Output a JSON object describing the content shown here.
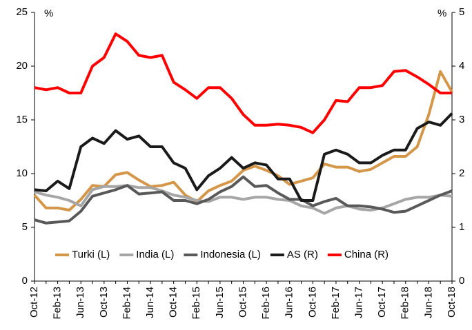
{
  "chart_data": {
    "type": "line",
    "y_unit_label": "%",
    "y2_unit_label": "%",
    "categories": [
      "Oct-12",
      null,
      "Feb-13",
      null,
      "Jun-13",
      null,
      "Oct-13",
      null,
      "Feb-14",
      null,
      "Jun-14",
      null,
      "Oct-14",
      null,
      "Feb-15",
      null,
      "Jun-15",
      null,
      "Oct-15",
      null,
      "Feb-16",
      null,
      "Jun-16",
      null,
      "Oct-16",
      null,
      "Feb-17",
      null,
      "Jun-17",
      null,
      "Oct-17",
      null,
      "Feb-18",
      null,
      "Jun-18",
      null,
      "Oct-18"
    ],
    "ylim": [
      0,
      25
    ],
    "yticks": [
      0,
      5,
      10,
      15,
      20,
      25
    ],
    "y2lim": [
      0,
      5
    ],
    "y2ticks": [
      0,
      1,
      2,
      3,
      4,
      5
    ],
    "legend": "bottom",
    "series": [
      {
        "name": "Turki (L)",
        "color": "#d4974a",
        "values": [
          8.0,
          6.8,
          6.8,
          6.6,
          7.6,
          8.9,
          8.8,
          9.9,
          10.1,
          9.4,
          8.8,
          8.9,
          9.2,
          8.0,
          7.4,
          8.4,
          8.9,
          9.3,
          10.3,
          10.7,
          10.3,
          9.8,
          9.0,
          9.3,
          9.6,
          10.9,
          10.6,
          10.6,
          10.2,
          10.4,
          11.0,
          11.6,
          11.6,
          12.5,
          15.5,
          19.5,
          17.6
        ]
      },
      {
        "name": "India (L)",
        "color": "#a6a6a6",
        "values": [
          8.3,
          8.0,
          7.8,
          7.5,
          7.0,
          8.5,
          8.8,
          8.8,
          8.9,
          8.7,
          8.7,
          8.4,
          8.0,
          7.8,
          7.5,
          7.4,
          7.8,
          7.8,
          7.6,
          7.8,
          7.8,
          7.6,
          7.5,
          7.0,
          6.8,
          6.3,
          6.8,
          7.0,
          6.7,
          6.6,
          6.8,
          7.2,
          7.6,
          7.8,
          7.8,
          8.0,
          7.9
        ]
      },
      {
        "name": "Indonesia (L)",
        "color": "#595959",
        "values": [
          5.7,
          5.4,
          5.5,
          5.6,
          6.5,
          7.9,
          8.2,
          8.5,
          8.9,
          8.1,
          8.2,
          8.3,
          7.5,
          7.5,
          7.2,
          7.6,
          8.3,
          8.8,
          9.7,
          8.8,
          8.9,
          8.2,
          7.6,
          7.6,
          7.0,
          7.4,
          7.7,
          7.0,
          7.0,
          6.9,
          6.7,
          6.4,
          6.5,
          7.0,
          7.5,
          8.0,
          8.4
        ]
      },
      {
        "name": "AS (R)",
        "color": "#1a1a1a",
        "axis": "y2",
        "values": [
          1.7,
          1.68,
          1.86,
          1.72,
          2.5,
          2.66,
          2.56,
          2.8,
          2.64,
          2.7,
          2.5,
          2.5,
          2.2,
          2.1,
          1.7,
          1.96,
          2.1,
          2.3,
          2.1,
          2.2,
          2.16,
          1.9,
          1.9,
          1.5,
          1.5,
          2.36,
          2.44,
          2.36,
          2.2,
          2.2,
          2.34,
          2.44,
          2.44,
          2.84,
          2.96,
          2.9,
          3.12
        ]
      },
      {
        "name": "China (R)",
        "color": "#ff0000",
        "axis": "y2",
        "values": [
          3.6,
          3.56,
          3.6,
          3.5,
          3.5,
          4.0,
          4.16,
          4.6,
          4.46,
          4.2,
          4.16,
          4.2,
          3.7,
          3.56,
          3.4,
          3.6,
          3.6,
          3.4,
          3.1,
          2.9,
          2.9,
          2.92,
          2.9,
          2.86,
          2.76,
          3.0,
          3.36,
          3.34,
          3.6,
          3.6,
          3.64,
          3.9,
          3.92,
          3.8,
          3.66,
          3.5,
          3.5
        ]
      }
    ]
  }
}
